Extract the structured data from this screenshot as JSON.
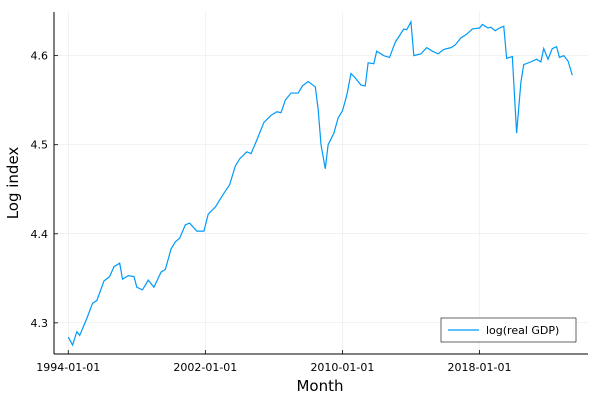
{
  "chart_data": {
    "type": "line",
    "xlabel": "Month",
    "ylabel": "Log index",
    "x": [
      "1994-01-01",
      "1994-04-01",
      "1994-07-01",
      "1994-09-01",
      "1995-02-01",
      "1995-06-01",
      "1995-09-01",
      "1996-02-01",
      "1996-06-01",
      "1996-09-01",
      "1997-01-01",
      "1997-03-01",
      "1997-07-01",
      "1997-11-01",
      "1998-01-01",
      "1998-05-01",
      "1998-09-01",
      "1999-01-01",
      "1999-06-01",
      "1999-09-01",
      "2000-01-01",
      "2000-04-01",
      "2000-07-01",
      "2000-11-01",
      "2001-02-01",
      "2001-07-01",
      "2001-12-01",
      "2002-03-01",
      "2002-08-01",
      "2003-01-01",
      "2003-06-01",
      "2003-10-01",
      "2004-01-01",
      "2004-06-01",
      "2004-09-01",
      "2005-01-01",
      "2005-06-01",
      "2005-11-01",
      "2006-03-01",
      "2006-06-01",
      "2006-09-01",
      "2007-01-01",
      "2007-06-01",
      "2007-09-01",
      "2008-01-01",
      "2008-06-01",
      "2008-08-01",
      "2008-10-01",
      "2009-01-01",
      "2009-03-01",
      "2009-07-01",
      "2009-10-01",
      "2010-01-01",
      "2010-04-01",
      "2010-07-01",
      "2010-10-01",
      "2011-02-01",
      "2011-05-01",
      "2011-07-01",
      "2011-11-01",
      "2012-01-01",
      "2012-06-01",
      "2012-10-01",
      "2013-02-01",
      "2013-06-01",
      "2013-08-01",
      "2013-10-01",
      "2014-01-01",
      "2014-03-01",
      "2014-08-01",
      "2014-12-01",
      "2015-04-01",
      "2015-08-01",
      "2015-12-01",
      "2016-05-01",
      "2016-08-01",
      "2016-12-01",
      "2017-04-01",
      "2017-08-01",
      "2018-01-01",
      "2018-03-01",
      "2018-07-01",
      "2018-09-01",
      "2018-12-01",
      "2019-03-01",
      "2019-06-01",
      "2019-08-01",
      "2019-12-01",
      "2020-03-01",
      "2020-06-01",
      "2020-08-01",
      "2021-01-01",
      "2021-05-01",
      "2021-08-01",
      "2021-10-01",
      "2022-01-01",
      "2022-04-01",
      "2022-07-01",
      "2022-09-01",
      "2022-12-01",
      "2023-03-01",
      "2023-06-01"
    ],
    "series": [
      {
        "name": "log(real GDP)",
        "color": "#009af9",
        "values": [
          4.284,
          4.275,
          4.29,
          4.286,
          4.305,
          4.322,
          4.325,
          4.347,
          4.352,
          4.363,
          4.367,
          4.349,
          4.353,
          4.352,
          4.34,
          4.337,
          4.348,
          4.34,
          4.357,
          4.36,
          4.383,
          4.391,
          4.395,
          4.41,
          4.412,
          4.403,
          4.403,
          4.422,
          4.43,
          4.443,
          4.455,
          4.476,
          4.484,
          4.492,
          4.49,
          4.505,
          4.525,
          4.533,
          4.537,
          4.536,
          4.55,
          4.558,
          4.558,
          4.566,
          4.571,
          4.565,
          4.54,
          4.5,
          4.473,
          4.5,
          4.513,
          4.53,
          4.538,
          4.555,
          4.58,
          4.575,
          4.567,
          4.566,
          4.592,
          4.591,
          4.605,
          4.6,
          4.598,
          4.615,
          4.625,
          4.63,
          4.629,
          4.638,
          4.6,
          4.602,
          4.609,
          4.605,
          4.602,
          4.607,
          4.609,
          4.612,
          4.62,
          4.624,
          4.63,
          4.631,
          4.635,
          4.631,
          4.632,
          4.628,
          4.631,
          4.633,
          4.597,
          4.599,
          4.513,
          4.57,
          4.59,
          4.593,
          4.596,
          4.593,
          4.608,
          4.596,
          4.608,
          4.61,
          4.598,
          4.6,
          4.594,
          4.578
        ]
      }
    ],
    "xlim": [
      "1993-03-01",
      "2024-05-01"
    ],
    "xticks": [
      "1994-01-01",
      "2002-01-01",
      "2010-01-01",
      "2018-01-01"
    ],
    "ylim": [
      4.265,
      4.649
    ],
    "yticks": [
      4.3,
      4.4,
      4.5,
      4.6
    ],
    "grid": true,
    "legend": "bottom-right"
  }
}
